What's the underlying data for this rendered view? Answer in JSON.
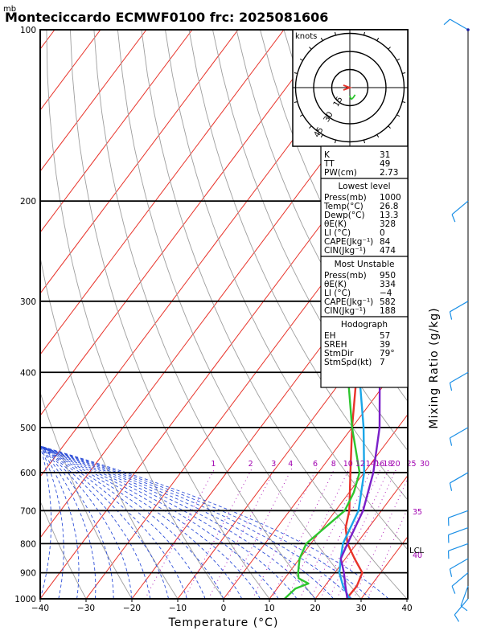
{
  "title": "Monteciccardo ECMWF0100 frc: 2025081606",
  "pressure_unit": "mb",
  "xlabel": "Temperature (°C)",
  "right_label": "Mixing Ratio (g/kg)",
  "hodograph": {
    "unit": "knots",
    "ring_labels": [
      "15",
      "30",
      "45"
    ]
  },
  "indices": {
    "top": [
      {
        "label": "K",
        "value": "31"
      },
      {
        "label": "TT",
        "value": "49"
      },
      {
        "label": "PW(cm)",
        "value": "2.73"
      }
    ],
    "lowest_level": {
      "header": "Lowest level",
      "rows": [
        {
          "label": "Press(mb)",
          "value": "1000"
        },
        {
          "label": "Temp(°C)",
          "value": "26.8"
        },
        {
          "label": "Dewp(°C)",
          "value": "13.3"
        },
        {
          "label": "θE(K)",
          "value": "328"
        },
        {
          "label": "LI  (°C)",
          "value": "0"
        },
        {
          "label": "CAPE(Jkg⁻¹)",
          "value": "84"
        },
        {
          "label": "CIN(Jkg⁻¹)",
          "value": "474"
        }
      ]
    },
    "most_unstable": {
      "header": "Most Unstable",
      "rows": [
        {
          "label": "Press(mb)",
          "value": "950"
        },
        {
          "label": "θE(K)",
          "value": "334"
        },
        {
          "label": "LI  (°C)",
          "value": "−4"
        },
        {
          "label": "CAPE(Jkg⁻¹)",
          "value": "582"
        },
        {
          "label": "CIN(Jkg⁻¹)",
          "value": "188"
        }
      ]
    },
    "hodograph": {
      "header": "Hodograph",
      "rows": [
        {
          "label": "EH",
          "value": "57"
        },
        {
          "label": "SREH",
          "value": "39"
        },
        {
          "label": "StmDir",
          "value": "79°"
        },
        {
          "label": "StmSpd(kt)",
          "value": "7"
        }
      ]
    }
  },
  "lcl_label": "LCL",
  "chart_data": {
    "type": "line",
    "title": "Monteciccardo ECMWF0100 frc: 2025081606",
    "xlabel": "Temperature (°C)",
    "ylabel": "mb",
    "xlim": [
      -40,
      40
    ],
    "ylim": [
      1000,
      100
    ],
    "y_scale": "log",
    "x_ticks": [
      "−40",
      "−30",
      "−20",
      "−10",
      "0",
      "10",
      "20",
      "30",
      "40"
    ],
    "y_ticks": [
      "100",
      "200",
      "300",
      "400",
      "500",
      "600",
      "700",
      "800",
      "900",
      "1000"
    ],
    "mixing_ratio_labels": [
      "1",
      "2",
      "3",
      "4",
      "6",
      "8",
      "10",
      "12",
      "14",
      "16",
      "18",
      "20",
      "25",
      "30",
      "35",
      "40"
    ],
    "colors": {
      "temperature": "#e8332a",
      "dewpoint": "#2ec62e",
      "virtual_temperature": "#1aa6e8",
      "parcel": "#7a1fc8",
      "isotherm": "#e8332a",
      "dry_adiabat": "#9e9e9e",
      "moist_adiabat": "#2e4fd8",
      "mixing_ratio": "#b020b8",
      "wind_barb": "#1a8fe6"
    },
    "series": [
      {
        "key": "temperature",
        "points": [
          [
            1000,
            26.8
          ],
          [
            950,
            27
          ],
          [
            900,
            26
          ],
          [
            850,
            22
          ],
          [
            800,
            18
          ],
          [
            750,
            15
          ],
          [
            700,
            13
          ],
          [
            600,
            7
          ],
          [
            500,
            0
          ],
          [
            400,
            -8
          ],
          [
            300,
            -17
          ],
          [
            250,
            -20
          ],
          [
            200,
            -15
          ],
          [
            150,
            -8
          ],
          [
            100,
            -3
          ]
        ]
      },
      {
        "key": "dewpoint",
        "points": [
          [
            1000,
            13.3
          ],
          [
            960,
            14
          ],
          [
            940,
            16
          ],
          [
            920,
            13
          ],
          [
            900,
            12
          ],
          [
            850,
            10
          ],
          [
            800,
            9
          ],
          [
            700,
            12
          ],
          [
            650,
            11
          ],
          [
            600,
            9
          ],
          [
            500,
            0
          ],
          [
            400,
            -10
          ],
          [
            300,
            -24
          ],
          [
            250,
            -33
          ],
          [
            200,
            -33
          ],
          [
            150,
            -36
          ],
          [
            100,
            -38
          ]
        ]
      },
      {
        "key": "virtual_temperature",
        "points": [
          [
            1000,
            27.5
          ],
          [
            950,
            24
          ],
          [
            900,
            21
          ],
          [
            850,
            19
          ],
          [
            800,
            17
          ],
          [
            700,
            15
          ],
          [
            600,
            10
          ],
          [
            500,
            2.5
          ],
          [
            400,
            -7.5
          ],
          [
            300,
            -20
          ],
          [
            200,
            -34
          ],
          [
            150,
            -45
          ],
          [
            100,
            -58
          ]
        ]
      },
      {
        "key": "parcel",
        "points": [
          [
            1000,
            27
          ],
          [
            950,
            24.5
          ],
          [
            900,
            22
          ],
          [
            850,
            19
          ],
          [
            800,
            18
          ],
          [
            700,
            16
          ],
          [
            600,
            12
          ],
          [
            500,
            6
          ],
          [
            400,
            -3
          ],
          [
            300,
            -14
          ],
          [
            250,
            -26
          ],
          [
            200,
            -35
          ],
          [
            150,
            -47
          ],
          [
            100,
            -58
          ]
        ]
      }
    ],
    "wind_profile": [
      {
        "p": 1000,
        "dir": 220,
        "speed": 10
      },
      {
        "p": 950,
        "dir": 200,
        "speed": 10
      },
      {
        "p": 900,
        "dir": 230,
        "speed": 10
      },
      {
        "p": 850,
        "dir": 240,
        "speed": 10
      },
      {
        "p": 800,
        "dir": 250,
        "speed": 10
      },
      {
        "p": 750,
        "dir": 250,
        "speed": 10
      },
      {
        "p": 700,
        "dir": 250,
        "speed": 10
      },
      {
        "p": 600,
        "dir": 240,
        "speed": 10
      },
      {
        "p": 500,
        "dir": 240,
        "speed": 10
      },
      {
        "p": 400,
        "dir": 240,
        "speed": 10
      },
      {
        "p": 300,
        "dir": 240,
        "speed": 10
      },
      {
        "p": 200,
        "dir": 230,
        "speed": 10
      },
      {
        "p": 100,
        "dir": 300,
        "speed": 10
      }
    ],
    "hodograph_trace": [
      [
        0,
        0
      ],
      [
        0.5,
        -1.5
      ],
      [
        1,
        -2
      ],
      [
        2,
        -1
      ],
      [
        3,
        0.5
      ]
    ]
  }
}
